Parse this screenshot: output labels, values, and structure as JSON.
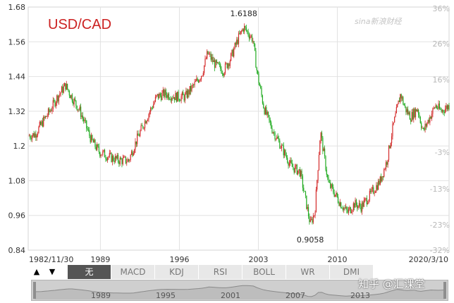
{
  "chart_data": {
    "type": "candlestick",
    "title": "USD/CAD",
    "y_left": {
      "ticks": [
        1.68,
        1.56,
        1.44,
        1.32,
        1.2,
        1.08,
        0.96,
        0.84
      ],
      "range": [
        0.84,
        1.68
      ]
    },
    "y_right": {
      "ticks": [
        "36%",
        "26%",
        "16%",
        "-3%",
        "-13%",
        "-23%",
        "-32%"
      ]
    },
    "x_ticks": [
      "1982/11/30",
      "1989",
      "1996",
      "2003",
      "2010",
      "2020/3/10"
    ],
    "annotations": [
      {
        "label": "1.6188",
        "x": 2002.0,
        "y": 1.6188
      },
      {
        "label": "0.9058",
        "x": 2007.9,
        "y": 0.9058
      }
    ],
    "series_keypoints": [
      [
        1982.9,
        1.235
      ],
      [
        1983.5,
        1.24
      ],
      [
        1984.3,
        1.29
      ],
      [
        1984.8,
        1.32
      ],
      [
        1985.5,
        1.37
      ],
      [
        1986.2,
        1.41
      ],
      [
        1986.6,
        1.38
      ],
      [
        1987.5,
        1.32
      ],
      [
        1988.5,
        1.22
      ],
      [
        1989.2,
        1.18
      ],
      [
        1990.2,
        1.16
      ],
      [
        1991.0,
        1.15
      ],
      [
        1991.8,
        1.15
      ],
      [
        1992.5,
        1.22
      ],
      [
        1993.3,
        1.29
      ],
      [
        1994.3,
        1.37
      ],
      [
        1995.0,
        1.38
      ],
      [
        1996.0,
        1.37
      ],
      [
        1996.8,
        1.37
      ],
      [
        1997.6,
        1.41
      ],
      [
        1998.3,
        1.45
      ],
      [
        1998.8,
        1.52
      ],
      [
        1999.5,
        1.48
      ],
      [
        2000.2,
        1.46
      ],
      [
        2000.8,
        1.5
      ],
      [
        2001.5,
        1.57
      ],
      [
        2002.0,
        1.61
      ],
      [
        2002.8,
        1.57
      ],
      [
        2003.2,
        1.45
      ],
      [
        2003.8,
        1.33
      ],
      [
        2004.5,
        1.26
      ],
      [
        2005.3,
        1.2
      ],
      [
        2006.2,
        1.13
      ],
      [
        2007.0,
        1.11
      ],
      [
        2007.6,
        0.99
      ],
      [
        2007.9,
        0.93
      ],
      [
        2008.3,
        0.97
      ],
      [
        2008.8,
        1.25
      ],
      [
        2009.5,
        1.07
      ],
      [
        2010.0,
        1.04
      ],
      [
        2010.6,
        1.0
      ],
      [
        2011.2,
        0.97
      ],
      [
        2011.8,
        1.0
      ],
      [
        2012.4,
        0.99
      ],
      [
        2013.2,
        1.03
      ],
      [
        2014.1,
        1.08
      ],
      [
        2014.7,
        1.15
      ],
      [
        2015.2,
        1.26
      ],
      [
        2015.9,
        1.38
      ],
      [
        2016.3,
        1.33
      ],
      [
        2016.8,
        1.3
      ],
      [
        2017.4,
        1.33
      ],
      [
        2017.9,
        1.25
      ],
      [
        2018.5,
        1.3
      ],
      [
        2019.0,
        1.34
      ],
      [
        2019.5,
        1.32
      ],
      [
        2020.2,
        1.34
      ]
    ],
    "grid": true,
    "legend": "none"
  },
  "toolbar": {
    "up_arrow": "▲",
    "down_arrow": "▼",
    "tabs": [
      "无",
      "MACD",
      "KDJ",
      "RSI",
      "BOLL",
      "WR",
      "DMI"
    ],
    "active_tab": "无"
  },
  "navigator": {
    "years": [
      "1989",
      "1995",
      "2001",
      "2007",
      "2013"
    ]
  },
  "logo_text": "sina新浪财经",
  "watermark": "知乎 @汇课堂",
  "colors": {
    "up": "#d42a2a",
    "down": "#1faa1f",
    "title": "#cc2222",
    "grid": "#e2e2e2"
  }
}
